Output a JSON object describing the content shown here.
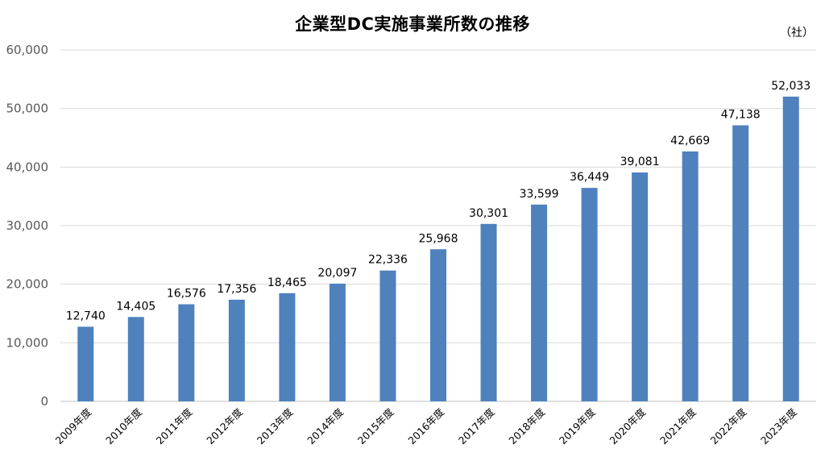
{
  "chart_data": {
    "type": "bar",
    "title": "企業型DC実施事業所数の推移",
    "unit_label": "（社）",
    "xlabel": "",
    "ylabel": "",
    "ylim": [
      0,
      60000
    ],
    "yticks": [
      0,
      10000,
      20000,
      30000,
      40000,
      50000,
      60000
    ],
    "ytick_labels": [
      "0",
      "10,000",
      "20,000",
      "30,000",
      "40,000",
      "50,000",
      "60,000"
    ],
    "grid": true,
    "legend": "none",
    "bar_color": "#4f81bd",
    "categories": [
      "2009年度",
      "2010年度",
      "2011年度",
      "2012年度",
      "2013年度",
      "2014年度",
      "2015年度",
      "2016年度",
      "2017年度",
      "2018年度",
      "2019年度",
      "2020年度",
      "2021年度",
      "2022年度",
      "2023年度"
    ],
    "values": [
      12740,
      14405,
      16576,
      17356,
      18465,
      20097,
      22336,
      25968,
      30301,
      33599,
      36449,
      39081,
      42669,
      47138,
      52033
    ],
    "value_labels": [
      "12,740",
      "14,405",
      "16,576",
      "17,356",
      "18,465",
      "20,097",
      "22,336",
      "25,968",
      "30,301",
      "33,599",
      "36,449",
      "39,081",
      "42,669",
      "47,138",
      "52,033"
    ]
  }
}
